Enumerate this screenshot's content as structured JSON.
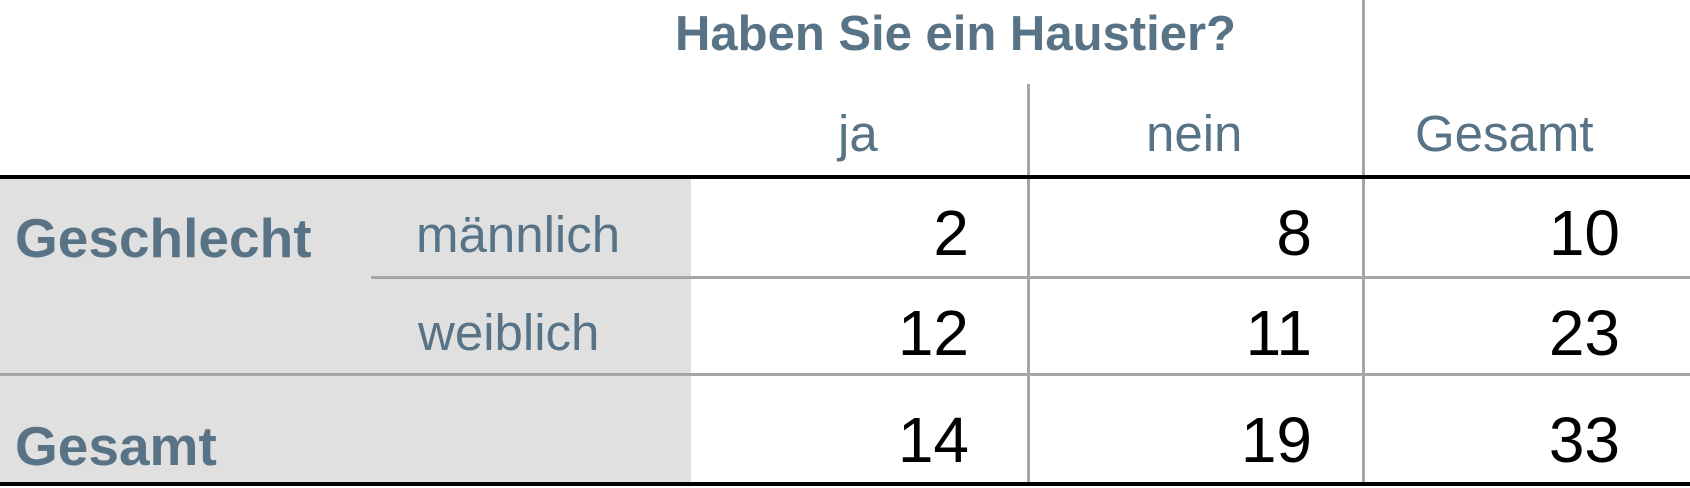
{
  "table": {
    "question": "Haben Sie ein Haustier?",
    "columns": [
      "ja",
      "nein",
      "Gesamt"
    ],
    "row_group_label": "Geschlecht",
    "rows": [
      {
        "label": "männlich",
        "values": [
          "2",
          "8",
          "10"
        ]
      },
      {
        "label": "weiblich",
        "values": [
          "12",
          "11",
          "23"
        ]
      }
    ],
    "total_row": {
      "label": "Gesamt",
      "values": [
        "14",
        "19",
        "33"
      ]
    }
  },
  "colors": {
    "header_text": "#587386",
    "label_background": "#e0e0e0",
    "grid_line": "#a6a6a6",
    "value_text": "#000000"
  }
}
